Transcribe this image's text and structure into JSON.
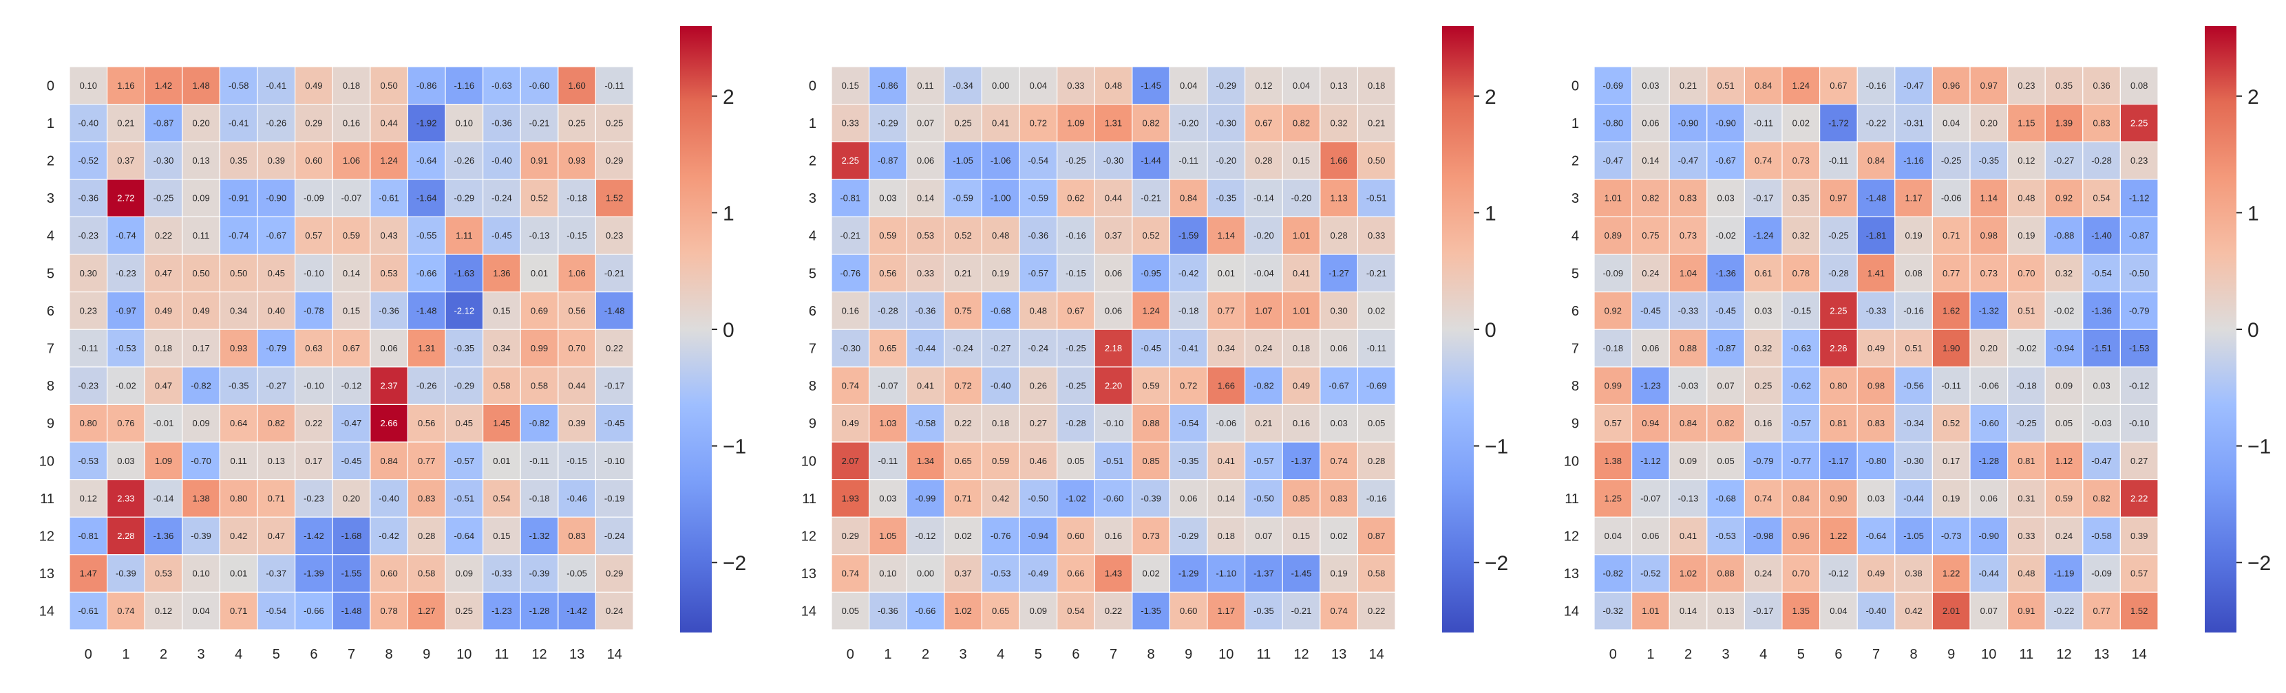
{
  "chart_data": [
    {
      "type": "heatmap",
      "row_labels": [
        "0",
        "1",
        "2",
        "3",
        "4",
        "5",
        "6",
        "7",
        "8",
        "9",
        "10",
        "11",
        "12",
        "13",
        "14"
      ],
      "col_labels": [
        "0",
        "1",
        "2",
        "3",
        "4",
        "5",
        "6",
        "7",
        "8",
        "9",
        "10",
        "11",
        "12",
        "13",
        "14"
      ],
      "colorbar": {
        "colormap": "coolwarm",
        "vmin": -2.6,
        "vmax": 2.6,
        "ticks": [
          -2,
          -1,
          0,
          1,
          2
        ],
        "tick_labels": [
          "−2",
          "−1",
          "0",
          "1",
          "2"
        ]
      },
      "values": [
        [
          0.1,
          1.16,
          1.42,
          1.48,
          -0.58,
          -0.41,
          0.49,
          0.18,
          0.5,
          -0.86,
          -1.16,
          -0.63,
          -0.6,
          1.6,
          -0.11
        ],
        [
          -0.4,
          0.21,
          -0.87,
          0.2,
          -0.41,
          -0.26,
          0.29,
          0.16,
          0.44,
          -1.92,
          0.1,
          -0.36,
          -0.21,
          0.25,
          0.25
        ],
        [
          -0.52,
          0.37,
          -0.3,
          0.13,
          0.35,
          0.39,
          0.6,
          1.06,
          1.24,
          -0.64,
          -0.26,
          -0.4,
          0.91,
          0.93,
          0.29
        ],
        [
          -0.36,
          2.72,
          -0.25,
          0.09,
          -0.91,
          -0.9,
          -0.09,
          -0.07,
          -0.61,
          -1.64,
          -0.29,
          -0.24,
          0.52,
          -0.18,
          1.52
        ],
        [
          -0.23,
          -0.74,
          0.22,
          0.11,
          -0.74,
          -0.67,
          0.57,
          0.59,
          0.43,
          -0.55,
          1.11,
          -0.45,
          -0.13,
          -0.15,
          0.23
        ],
        [
          0.3,
          -0.23,
          0.47,
          0.5,
          0.5,
          0.45,
          -0.1,
          0.14,
          0.53,
          -0.66,
          -1.63,
          1.36,
          0.01,
          1.06,
          -0.21
        ],
        [
          0.23,
          -0.97,
          0.49,
          0.49,
          0.34,
          0.4,
          -0.78,
          0.15,
          -0.36,
          -1.48,
          -2.12,
          0.15,
          0.69,
          0.56,
          -1.48
        ],
        [
          -0.11,
          -0.53,
          0.18,
          0.17,
          0.93,
          -0.79,
          0.63,
          0.67,
          0.06,
          1.31,
          -0.35,
          0.34,
          0.99,
          0.7,
          0.22
        ],
        [
          -0.23,
          -0.02,
          0.47,
          -0.82,
          -0.35,
          -0.27,
          -0.1,
          -0.12,
          2.37,
          -0.26,
          -0.29,
          0.58,
          0.58,
          0.44,
          -0.17
        ],
        [
          0.8,
          0.76,
          -0.01,
          0.09,
          0.64,
          0.82,
          0.22,
          -0.47,
          2.66,
          0.56,
          0.45,
          1.45,
          -0.82,
          0.39,
          -0.45
        ],
        [
          -0.53,
          0.03,
          1.09,
          -0.7,
          0.11,
          0.13,
          0.17,
          -0.45,
          0.84,
          0.77,
          -0.57,
          0.01,
          -0.11,
          -0.15,
          -0.1
        ],
        [
          0.12,
          2.33,
          -0.14,
          1.38,
          0.8,
          0.71,
          -0.23,
          0.2,
          -0.4,
          0.83,
          -0.51,
          0.54,
          -0.18,
          -0.46,
          -0.19
        ],
        [
          -0.81,
          2.28,
          -1.36,
          -0.39,
          0.42,
          0.47,
          -1.42,
          -1.68,
          -0.42,
          0.28,
          -0.64,
          0.15,
          -1.32,
          0.83,
          -0.24
        ],
        [
          1.47,
          -0.39,
          0.53,
          0.1,
          0.01,
          -0.37,
          -1.39,
          -1.55,
          0.6,
          0.58,
          0.09,
          -0.33,
          -0.39,
          -0.05,
          0.29
        ],
        [
          -0.61,
          0.74,
          0.12,
          0.04,
          0.71,
          -0.54,
          -0.66,
          -1.48,
          0.78,
          1.27,
          0.25,
          -1.23,
          -1.28,
          -1.42,
          0.24
        ]
      ]
    },
    {
      "type": "heatmap",
      "row_labels": [
        "0",
        "1",
        "2",
        "3",
        "4",
        "5",
        "6",
        "7",
        "8",
        "9",
        "10",
        "11",
        "12",
        "13",
        "14"
      ],
      "col_labels": [
        "0",
        "1",
        "2",
        "3",
        "4",
        "5",
        "6",
        "7",
        "8",
        "9",
        "10",
        "11",
        "12",
        "13",
        "14"
      ],
      "colorbar": {
        "colormap": "coolwarm",
        "vmin": -2.6,
        "vmax": 2.6,
        "ticks": [
          -2,
          -1,
          0,
          1,
          2
        ],
        "tick_labels": [
          "−2",
          "−1",
          "0",
          "1",
          "2"
        ]
      },
      "values": [
        [
          0.15,
          -0.86,
          0.11,
          -0.34,
          0.0,
          0.04,
          0.33,
          0.48,
          -1.45,
          0.04,
          -0.29,
          0.12,
          0.04,
          0.13,
          0.18
        ],
        [
          0.33,
          -0.29,
          0.07,
          0.25,
          0.41,
          0.72,
          1.09,
          1.31,
          0.82,
          -0.2,
          -0.3,
          0.67,
          0.82,
          0.32,
          0.21
        ],
        [
          2.25,
          -0.87,
          0.06,
          -1.05,
          -1.06,
          -0.54,
          -0.25,
          -0.3,
          -1.44,
          -0.11,
          -0.2,
          0.28,
          0.15,
          1.66,
          0.5
        ],
        [
          -0.81,
          0.03,
          0.14,
          -0.59,
          -1.0,
          -0.59,
          0.62,
          0.44,
          -0.21,
          0.84,
          -0.35,
          -0.14,
          -0.2,
          1.13,
          -0.51
        ],
        [
          -0.21,
          0.59,
          0.53,
          0.52,
          0.48,
          -0.36,
          -0.16,
          0.37,
          0.52,
          -1.59,
          1.14,
          -0.2,
          1.01,
          0.28,
          0.33
        ],
        [
          -0.76,
          0.56,
          0.33,
          0.21,
          0.19,
          -0.57,
          -0.15,
          0.06,
          -0.95,
          -0.42,
          0.01,
          -0.04,
          0.41,
          -1.27,
          -0.21
        ],
        [
          0.16,
          -0.28,
          -0.36,
          0.75,
          -0.68,
          0.48,
          0.67,
          0.06,
          1.24,
          -0.18,
          0.77,
          1.07,
          1.01,
          0.3,
          0.02
        ],
        [
          -0.3,
          0.65,
          -0.44,
          -0.24,
          -0.27,
          -0.24,
          -0.25,
          2.18,
          -0.45,
          -0.41,
          0.34,
          0.24,
          0.18,
          0.06,
          -0.11
        ],
        [
          0.74,
          -0.07,
          0.41,
          0.72,
          -0.4,
          0.26,
          -0.25,
          2.2,
          0.59,
          0.72,
          1.66,
          -0.82,
          0.49,
          -0.67,
          -0.69
        ],
        [
          0.49,
          1.03,
          -0.58,
          0.22,
          0.18,
          0.27,
          -0.28,
          -0.1,
          0.88,
          -0.54,
          -0.06,
          0.21,
          0.16,
          0.03,
          0.05
        ],
        [
          2.07,
          -0.11,
          1.34,
          0.65,
          0.59,
          0.46,
          0.05,
          -0.51,
          0.85,
          -0.35,
          0.41,
          -0.57,
          -1.37,
          0.74,
          0.28
        ],
        [
          1.93,
          0.03,
          -0.99,
          0.71,
          0.42,
          -0.5,
          -1.02,
          -0.6,
          -0.39,
          0.06,
          0.14,
          -0.5,
          0.85,
          0.83,
          -0.16
        ],
        [
          0.29,
          1.05,
          -0.12,
          0.02,
          -0.76,
          -0.94,
          0.6,
          0.16,
          0.73,
          -0.29,
          0.18,
          0.07,
          0.15,
          0.02,
          0.87
        ],
        [
          0.74,
          0.1,
          0.0,
          0.37,
          -0.53,
          -0.49,
          0.66,
          1.43,
          0.02,
          -1.29,
          -1.1,
          -1.37,
          -1.45,
          0.19,
          0.58
        ],
        [
          0.05,
          -0.36,
          -0.66,
          1.02,
          0.65,
          0.09,
          0.54,
          0.22,
          -1.35,
          0.6,
          1.17,
          -0.35,
          -0.21,
          0.74,
          0.22
        ]
      ]
    },
    {
      "type": "heatmap",
      "row_labels": [
        "0",
        "1",
        "2",
        "3",
        "4",
        "5",
        "6",
        "7",
        "8",
        "9",
        "10",
        "11",
        "12",
        "13",
        "14"
      ],
      "col_labels": [
        "0",
        "1",
        "2",
        "3",
        "4",
        "5",
        "6",
        "7",
        "8",
        "9",
        "10",
        "11",
        "12",
        "13",
        "14"
      ],
      "colorbar": {
        "colormap": "coolwarm",
        "vmin": -2.6,
        "vmax": 2.6,
        "ticks": [
          -2,
          -1,
          0,
          1,
          2
        ],
        "tick_labels": [
          "−2",
          "−1",
          "0",
          "1",
          "2"
        ]
      },
      "values": [
        [
          -0.69,
          0.03,
          0.21,
          0.51,
          0.84,
          1.24,
          0.67,
          -0.16,
          -0.47,
          0.96,
          0.97,
          0.23,
          0.35,
          0.36,
          0.08
        ],
        [
          -0.8,
          0.06,
          -0.9,
          -0.9,
          -0.11,
          0.02,
          -1.72,
          -0.22,
          -0.31,
          0.04,
          0.2,
          1.15,
          1.39,
          0.83,
          2.25
        ],
        [
          -0.47,
          0.14,
          -0.47,
          -0.67,
          0.74,
          0.73,
          -0.11,
          0.84,
          -1.16,
          -0.25,
          -0.35,
          0.12,
          -0.27,
          -0.28,
          0.23
        ],
        [
          1.01,
          0.82,
          0.83,
          0.03,
          -0.17,
          0.35,
          0.97,
          -1.48,
          1.17,
          -0.06,
          1.14,
          0.48,
          0.92,
          0.54,
          -1.12
        ],
        [
          0.89,
          0.75,
          0.73,
          -0.02,
          -1.24,
          0.32,
          -0.25,
          -1.81,
          0.19,
          0.71,
          0.98,
          0.19,
          -0.88,
          -1.4,
          -0.87
        ],
        [
          -0.09,
          0.24,
          1.04,
          -1.36,
          0.61,
          0.78,
          -0.28,
          1.41,
          0.08,
          0.77,
          0.73,
          0.7,
          0.32,
          -0.54,
          -0.5
        ],
        [
          0.92,
          -0.45,
          -0.33,
          -0.45,
          0.03,
          -0.15,
          2.25,
          -0.33,
          -0.16,
          1.62,
          -1.32,
          0.51,
          -0.02,
          -1.36,
          -0.79
        ],
        [
          -0.18,
          0.06,
          0.88,
          -0.87,
          0.32,
          -0.63,
          2.26,
          0.49,
          0.51,
          1.9,
          0.2,
          -0.02,
          -0.94,
          -1.51,
          -1.53
        ],
        [
          0.99,
          -1.23,
          -0.03,
          0.07,
          0.25,
          -0.62,
          0.8,
          0.98,
          -0.56,
          -0.11,
          -0.06,
          -0.18,
          0.09,
          0.03,
          -0.12
        ],
        [
          0.57,
          0.94,
          0.84,
          0.82,
          0.16,
          -0.57,
          0.81,
          0.83,
          -0.34,
          0.52,
          -0.6,
          -0.25,
          0.05,
          -0.03,
          -0.1
        ],
        [
          1.38,
          -1.12,
          0.09,
          0.05,
          -0.79,
          -0.77,
          -1.17,
          -0.8,
          -0.3,
          0.17,
          -1.28,
          0.81,
          1.12,
          -0.47,
          0.27
        ],
        [
          1.25,
          -0.07,
          -0.13,
          -0.68,
          0.74,
          0.84,
          0.9,
          0.03,
          -0.44,
          0.19,
          0.06,
          0.31,
          0.59,
          0.82,
          2.22
        ],
        [
          0.04,
          0.06,
          0.41,
          -0.53,
          -0.98,
          0.96,
          1.22,
          -0.64,
          -1.05,
          -0.73,
          -0.9,
          0.33,
          0.24,
          -0.58,
          0.39
        ],
        [
          -0.82,
          -0.52,
          1.02,
          0.88,
          0.24,
          0.7,
          -0.12,
          0.49,
          0.38,
          1.22,
          -0.44,
          0.48,
          -1.19,
          -0.09,
          0.57
        ],
        [
          -0.32,
          1.01,
          0.14,
          0.13,
          -0.17,
          1.35,
          0.04,
          -0.4,
          0.42,
          2.01,
          0.07,
          0.91,
          -0.22,
          0.77,
          1.52
        ]
      ]
    }
  ]
}
